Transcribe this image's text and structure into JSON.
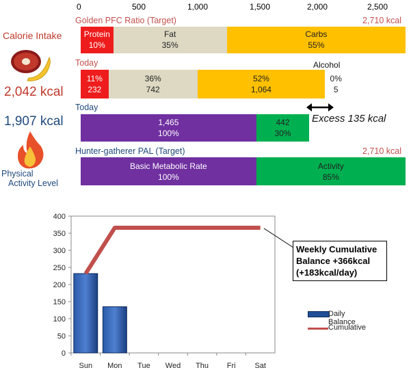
{
  "colors": {
    "protein": "#ee1c1c",
    "fat": "#ddd9c3",
    "carbs": "#ffc000",
    "metabolic": "#7030a0",
    "activity": "#00b050",
    "target_text": "#c0504d",
    "today_text": "#c0504d",
    "today2_text": "#1f497d",
    "bar_blue": "#1f4e96",
    "line_red": "#c0504d"
  },
  "left_panel": {
    "calorie_title": "Calorie Intake",
    "calorie_value": "2,042 kcal",
    "burn_value": "1,907 kcal",
    "pal_line1": "Physical",
    "pal_line2": "Activity Level",
    "meat_icon": "meat-banana-icon",
    "fire_icon": "fire-icon"
  },
  "top_axis": {
    "ticks": [
      "0",
      "500",
      "1,000",
      "1,500",
      "2,000",
      "2,500"
    ],
    "max": 2710
  },
  "rows": {
    "target": {
      "title": "Golden PFC Ratio (Target)",
      "total": "2,710 kcal",
      "protein": {
        "label": "Protein",
        "pct": "10%",
        "value": 271
      },
      "fat": {
        "label": "Fat",
        "pct": "35%",
        "value": 948.5
      },
      "carbs": {
        "label": "Carbs",
        "pct": "55%",
        "value": 1490.5
      }
    },
    "today": {
      "title": "Today",
      "protein": {
        "pct": "11%",
        "kcal": "232",
        "value": 232
      },
      "fat": {
        "pct": "36%",
        "kcal": "742",
        "value": 742
      },
      "carbs": {
        "pct": "52%",
        "kcal": "1,064",
        "value": 1064
      },
      "alcohol": {
        "label": "Alcohol",
        "pct": "0%",
        "kcal": "5",
        "value": 5
      }
    },
    "today_burn": {
      "title": "Today",
      "metabolic": {
        "kcal": "1,465",
        "pct": "100%",
        "value": 1465
      },
      "activity": {
        "kcal": "442",
        "pct": "30%",
        "value": 442
      },
      "excess": "Excess 135 kcal"
    },
    "pal_target": {
      "title": "Hunter-gatherer  PAL (Target)",
      "total": "2,710 kcal",
      "metabolic": {
        "label": "Basic Metabolic Rate",
        "pct": "100%",
        "value": 1465
      },
      "activity": {
        "label": "Activity",
        "pct": "85%",
        "value": 1245
      }
    }
  },
  "chart_data": {
    "type": "bar",
    "categories": [
      "Sun",
      "Mon",
      "Tue",
      "Wed",
      "Thu",
      "Fri",
      "Sat"
    ],
    "series": [
      {
        "name": "Daily Balance",
        "type": "bar",
        "values": [
          232,
          135,
          null,
          null,
          null,
          null,
          null
        ]
      },
      {
        "name": "Cumulative",
        "type": "line",
        "values": [
          232,
          366,
          366,
          366,
          366,
          366,
          366
        ]
      }
    ],
    "yticks": [
      "0",
      "50",
      "100",
      "150",
      "200",
      "250",
      "300",
      "350",
      "400"
    ],
    "ylim": [
      0,
      400
    ],
    "grid": false,
    "legend_position": "right",
    "annotation": [
      "Weekly Cumulative",
      "Balance +366kcal",
      "(+183kcal/day)"
    ]
  }
}
